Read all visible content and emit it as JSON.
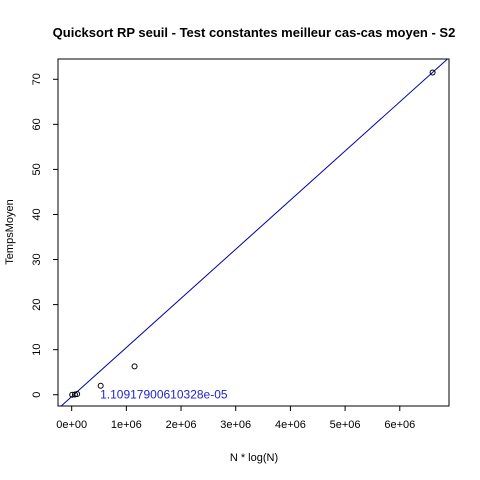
{
  "chart_data": {
    "type": "scatter",
    "title": "Quicksort RP seuil - Test constantes meilleur cas-cas moyen - S2",
    "xlabel": "N * log(N)",
    "ylabel": "TempsMoyen",
    "xlim": [
      -250000,
      6900000
    ],
    "ylim": [
      -2.5,
      74.5
    ],
    "x_ticks": [
      0,
      1000000,
      2000000,
      3000000,
      4000000,
      5000000,
      6000000
    ],
    "x_tick_labels": [
      "0e+00",
      "1e+06",
      "2e+06",
      "3e+06",
      "4e+06",
      "5e+06",
      "6e+06"
    ],
    "y_ticks": [
      0,
      10,
      20,
      30,
      40,
      50,
      60,
      70
    ],
    "y_tick_labels": [
      "0",
      "10",
      "20",
      "30",
      "40",
      "50",
      "60",
      "70"
    ],
    "points": {
      "x": [
        10000,
        60000,
        100000,
        530000,
        1150000,
        6600000
      ],
      "y": [
        0.0,
        0.05,
        0.15,
        2.0,
        6.3,
        71.5
      ]
    },
    "fit_line": {
      "color": "#0000aa",
      "from": [
        -200000,
        -2.6
      ],
      "to": [
        6900000,
        74.8
      ]
    },
    "annotation": {
      "text": "1.10917900610328e-05",
      "x": 520000,
      "y": 0,
      "color": "#2222cc"
    },
    "grid": false
  }
}
